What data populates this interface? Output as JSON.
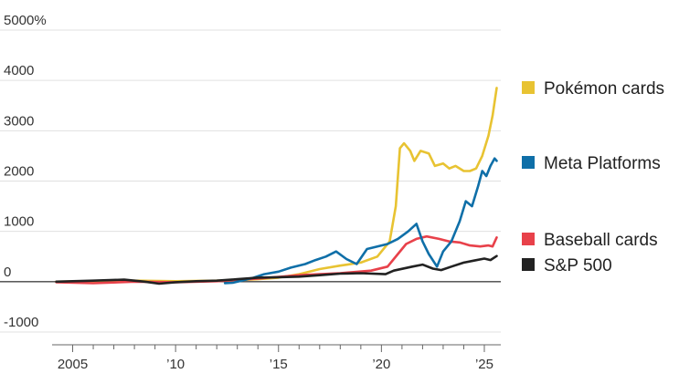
{
  "chart_data": {
    "type": "line",
    "y_unit_suffix": "%",
    "ylim": [
      -1000,
      5000
    ],
    "y_ticks": [
      {
        "value": 5000,
        "label": "5000%"
      },
      {
        "value": 4000,
        "label": "4000"
      },
      {
        "value": 3000,
        "label": "3000"
      },
      {
        "value": 2000,
        "label": "2000"
      },
      {
        "value": 1000,
        "label": "1000"
      },
      {
        "value": 0,
        "label": "0"
      },
      {
        "value": -1000,
        "label": "-1000"
      }
    ],
    "xlim": [
      2004.0,
      2025.8
    ],
    "x_ticks": [
      {
        "value": 2005,
        "label": "2005"
      },
      {
        "value": 2010,
        "label": "’10"
      },
      {
        "value": 2015,
        "label": "’15"
      },
      {
        "value": 2020,
        "label": "’20"
      },
      {
        "value": 2025,
        "label": "’25"
      }
    ],
    "grid": "horizontal",
    "legend_placement": "right",
    "series": [
      {
        "name": "Pokémon cards",
        "color": "#e8c332",
        "points": [
          [
            2004.2,
            0
          ],
          [
            2006,
            10
          ],
          [
            2008,
            20
          ],
          [
            2010,
            10
          ],
          [
            2012,
            20
          ],
          [
            2013,
            30
          ],
          [
            2014,
            50
          ],
          [
            2015,
            80
          ],
          [
            2016,
            150
          ],
          [
            2017,
            250
          ],
          [
            2018,
            320
          ],
          [
            2019,
            380
          ],
          [
            2019.8,
            500
          ],
          [
            2020.4,
            800
          ],
          [
            2020.7,
            1500
          ],
          [
            2020.9,
            2650
          ],
          [
            2021.1,
            2750
          ],
          [
            2021.4,
            2600
          ],
          [
            2021.6,
            2400
          ],
          [
            2021.9,
            2600
          ],
          [
            2022.3,
            2550
          ],
          [
            2022.6,
            2300
          ],
          [
            2023.0,
            2350
          ],
          [
            2023.3,
            2250
          ],
          [
            2023.6,
            2300
          ],
          [
            2024.0,
            2200
          ],
          [
            2024.3,
            2200
          ],
          [
            2024.6,
            2250
          ],
          [
            2024.9,
            2500
          ],
          [
            2025.2,
            2900
          ],
          [
            2025.4,
            3300
          ],
          [
            2025.6,
            3850
          ]
        ]
      },
      {
        "name": "Meta Platforms",
        "color": "#0f6fa8",
        "points": [
          [
            2012.4,
            -30
          ],
          [
            2012.8,
            -20
          ],
          [
            2013.3,
            30
          ],
          [
            2013.8,
            80
          ],
          [
            2014.3,
            150
          ],
          [
            2015.0,
            200
          ],
          [
            2015.6,
            280
          ],
          [
            2016.3,
            350
          ],
          [
            2016.8,
            430
          ],
          [
            2017.3,
            500
          ],
          [
            2017.8,
            600
          ],
          [
            2018.3,
            450
          ],
          [
            2018.8,
            350
          ],
          [
            2019.3,
            650
          ],
          [
            2019.8,
            700
          ],
          [
            2020.3,
            750
          ],
          [
            2020.8,
            850
          ],
          [
            2021.3,
            1000
          ],
          [
            2021.7,
            1150
          ],
          [
            2022.0,
            800
          ],
          [
            2022.3,
            550
          ],
          [
            2022.7,
            300
          ],
          [
            2023.0,
            600
          ],
          [
            2023.4,
            800
          ],
          [
            2023.8,
            1200
          ],
          [
            2024.1,
            1600
          ],
          [
            2024.4,
            1500
          ],
          [
            2024.7,
            1900
          ],
          [
            2024.9,
            2200
          ],
          [
            2025.1,
            2100
          ],
          [
            2025.3,
            2300
          ],
          [
            2025.5,
            2450
          ],
          [
            2025.6,
            2400
          ]
        ]
      },
      {
        "name": "Baseball cards",
        "color": "#e8414a",
        "points": [
          [
            2004.2,
            -10
          ],
          [
            2006,
            -30
          ],
          [
            2008,
            0
          ],
          [
            2010,
            -10
          ],
          [
            2012,
            10
          ],
          [
            2014,
            60
          ],
          [
            2016,
            130
          ],
          [
            2018,
            170
          ],
          [
            2019.5,
            220
          ],
          [
            2020.3,
            300
          ],
          [
            2020.8,
            550
          ],
          [
            2021.2,
            750
          ],
          [
            2021.7,
            850
          ],
          [
            2022.2,
            900
          ],
          [
            2022.8,
            850
          ],
          [
            2023.3,
            800
          ],
          [
            2023.8,
            780
          ],
          [
            2024.3,
            720
          ],
          [
            2024.8,
            700
          ],
          [
            2025.2,
            720
          ],
          [
            2025.4,
            700
          ],
          [
            2025.6,
            880
          ]
        ]
      },
      {
        "name": "S&P 500",
        "color": "#222222",
        "points": [
          [
            2004.2,
            0
          ],
          [
            2006,
            20
          ],
          [
            2007.5,
            40
          ],
          [
            2008.5,
            0
          ],
          [
            2009.2,
            -40
          ],
          [
            2010,
            -10
          ],
          [
            2011,
            10
          ],
          [
            2012,
            20
          ],
          [
            2013,
            50
          ],
          [
            2014,
            80
          ],
          [
            2015,
            90
          ],
          [
            2016,
            100
          ],
          [
            2017,
            130
          ],
          [
            2018,
            160
          ],
          [
            2019,
            170
          ],
          [
            2020.2,
            150
          ],
          [
            2020.6,
            220
          ],
          [
            2021.5,
            300
          ],
          [
            2022.0,
            340
          ],
          [
            2022.5,
            260
          ],
          [
            2022.9,
            230
          ],
          [
            2023.4,
            300
          ],
          [
            2024.0,
            380
          ],
          [
            2024.5,
            420
          ],
          [
            2025.0,
            460
          ],
          [
            2025.3,
            430
          ],
          [
            2025.6,
            510
          ]
        ]
      }
    ]
  }
}
